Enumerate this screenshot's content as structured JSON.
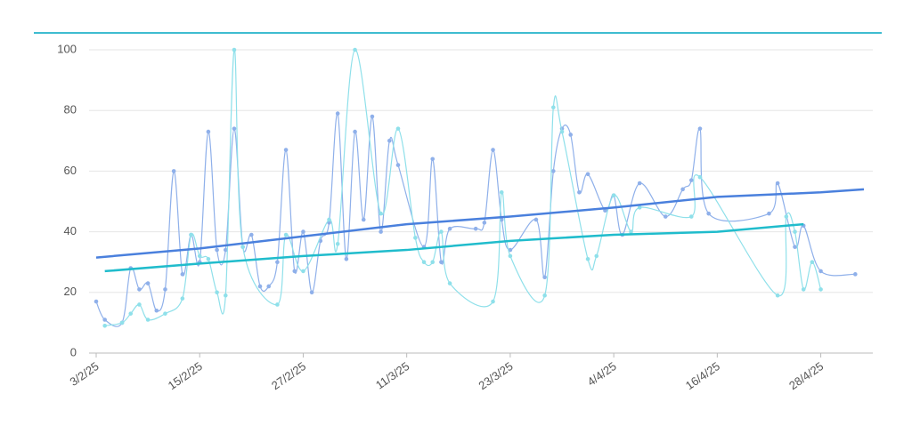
{
  "chart_data": {
    "type": "line",
    "xlim": [
      "3/2/25",
      "3/5/25"
    ],
    "xticks": [
      "3/2/25",
      "15/2/25",
      "27/2/25",
      "11/3/25",
      "23/3/25",
      "4/4/25",
      "16/4/25",
      "28/4/25"
    ],
    "ylim": [
      0,
      100
    ],
    "yticks": [
      0,
      20,
      40,
      60,
      80,
      100
    ],
    "grid": true,
    "series": [
      {
        "color": "#8fb0ea",
        "smooth": true,
        "markers": true,
        "x": [
          "3/2/25",
          "4/2/25",
          "6/2/25",
          "7/2/25",
          "8/2/25",
          "9/2/25",
          "10/2/25",
          "11/2/25",
          "12/2/25",
          "13/2/25",
          "14/2/25",
          "15/2/25",
          "16/2/25",
          "17/2/25",
          "18/2/25",
          "19/2/25",
          "20/2/25",
          "21/2/25",
          "22/2/25",
          "23/2/25",
          "24/2/25",
          "25/2/25",
          "26/2/25",
          "27/2/25",
          "28/2/25",
          "1/3/25",
          "2/3/25",
          "3/3/25",
          "4/3/25",
          "5/3/25",
          "6/3/25",
          "7/3/25",
          "8/3/25",
          "9/3/25",
          "10/3/25",
          "13/3/25",
          "14/3/25",
          "15/3/25",
          "16/3/25",
          "19/3/25",
          "20/3/25",
          "21/3/25",
          "22/3/25",
          "23/3/25",
          "26/3/25",
          "27/3/25",
          "28/3/25",
          "29/3/25",
          "30/3/25",
          "31/3/25",
          "1/4/25",
          "3/4/25",
          "4/4/25",
          "5/4/25",
          "7/4/25",
          "10/4/25",
          "12/4/25",
          "13/4/25",
          "14/4/25",
          "15/4/25",
          "22/4/25",
          "23/4/25",
          "25/4/25",
          "26/4/25",
          "28/4/25",
          "2/5/25"
        ],
        "values": [
          17,
          11,
          10,
          28,
          21,
          23,
          14,
          21,
          60,
          26,
          39,
          30,
          73,
          34,
          34,
          74,
          35,
          39,
          22,
          22,
          30,
          67,
          27,
          40,
          20,
          37,
          43,
          79,
          31,
          73,
          44,
          78,
          40,
          70,
          62,
          35,
          64,
          30,
          41,
          41,
          43,
          67,
          44,
          34,
          44,
          25,
          60,
          74,
          72,
          53,
          59,
          47,
          52,
          39,
          56,
          45,
          54,
          57,
          74,
          46,
          46,
          56,
          35,
          42,
          27,
          26
        ]
      },
      {
        "color": "#8fe0ea",
        "smooth": true,
        "markers": true,
        "x": [
          "4/2/25",
          "6/2/25",
          "7/2/25",
          "8/2/25",
          "9/2/25",
          "11/2/25",
          "13/2/25",
          "14/2/25",
          "15/2/25",
          "16/2/25",
          "17/2/25",
          "18/2/25",
          "19/2/25",
          "20/2/25",
          "24/2/25",
          "25/2/25",
          "27/2/25",
          "2/3/25",
          "3/3/25",
          "5/3/25",
          "8/3/25",
          "10/3/25",
          "12/3/25",
          "13/3/25",
          "14/3/25",
          "15/3/25",
          "16/3/25",
          "21/3/25",
          "22/3/25",
          "23/3/25",
          "27/3/25",
          "28/3/25",
          "29/3/25",
          "1/4/25",
          "2/4/25",
          "4/4/25",
          "6/4/25",
          "7/4/25",
          "13/4/25",
          "14/4/25",
          "23/4/25",
          "24/4/25",
          "25/4/25",
          "26/4/25",
          "27/4/25",
          "28/4/25"
        ],
        "values": [
          9,
          10,
          13,
          16,
          11,
          13,
          18,
          39,
          32,
          31,
          20,
          19,
          100,
          35,
          16,
          39,
          27,
          44,
          36,
          100,
          46,
          74,
          38,
          30,
          30,
          40,
          23,
          17,
          53,
          32,
          19,
          81,
          73,
          31,
          32,
          52,
          40,
          48,
          45,
          58,
          19,
          45,
          40,
          21,
          30,
          21
        ]
      },
      {
        "color": "#4a80dd",
        "smooth": false,
        "markers": false,
        "x": [
          "3/2/25",
          "15/2/25",
          "27/2/25",
          "11/3/25",
          "23/3/25",
          "4/4/25",
          "16/4/25",
          "28/4/25",
          "3/5/25"
        ],
        "values": [
          31.5,
          34.5,
          38.5,
          42.5,
          45,
          48,
          51.5,
          53,
          54
        ]
      },
      {
        "color": "#20bccc",
        "smooth": false,
        "markers": false,
        "x": [
          "4/2/25",
          "15/2/25",
          "27/2/25",
          "11/3/25",
          "23/3/25",
          "4/4/25",
          "16/4/25",
          "26/4/25"
        ],
        "values": [
          27,
          29.5,
          32,
          34,
          37,
          39,
          40,
          42.5
        ]
      }
    ]
  }
}
